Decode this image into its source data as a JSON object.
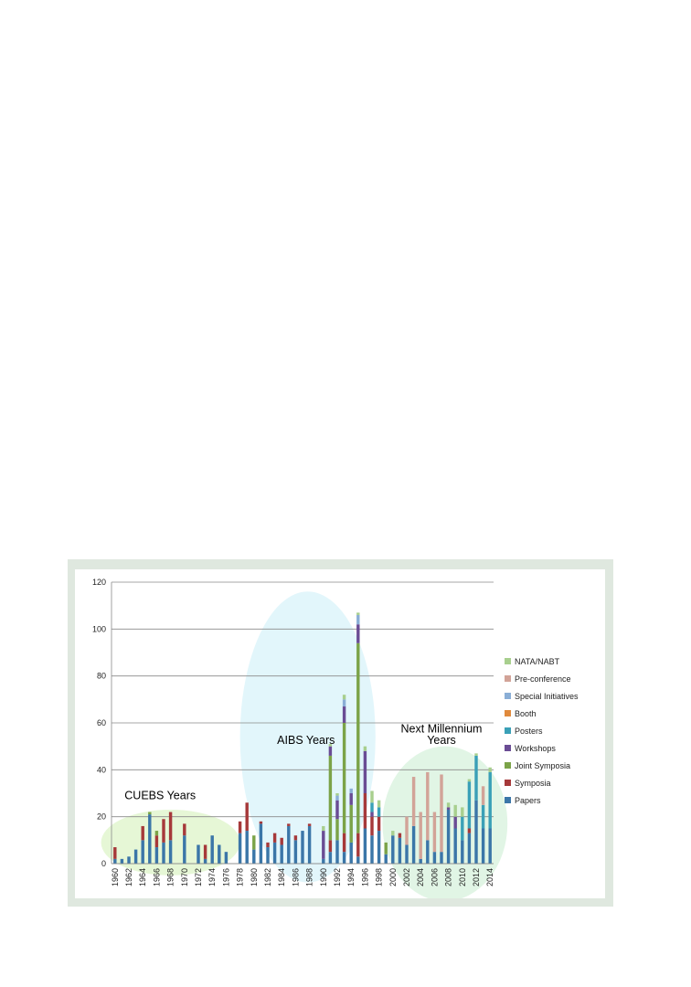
{
  "chart_data": {
    "type": "bar",
    "stacked": true,
    "title": "",
    "xlabel": "",
    "ylabel": "",
    "ylim": [
      0,
      120
    ],
    "yticks": [
      0,
      20,
      40,
      60,
      80,
      100,
      120
    ],
    "grid": "horizontal",
    "legend_position": "right",
    "years": [
      1960,
      1961,
      1962,
      1963,
      1964,
      1965,
      1966,
      1967,
      1968,
      1969,
      1970,
      1971,
      1972,
      1973,
      1974,
      1975,
      1976,
      1977,
      1978,
      1979,
      1980,
      1981,
      1982,
      1983,
      1984,
      1985,
      1986,
      1987,
      1988,
      1989,
      1990,
      1991,
      1992,
      1993,
      1994,
      1995,
      1996,
      1997,
      1998,
      1999,
      2000,
      2001,
      2002,
      2003,
      2004,
      2005,
      2006,
      2007,
      2008,
      2009,
      2010,
      2011,
      2012,
      2013,
      2014
    ],
    "year_tick_labels": [
      "1960",
      "1962",
      "1964",
      "1966",
      "1968",
      "1970",
      "1972",
      "1974",
      "1976",
      "1978",
      "1980",
      "1982",
      "1984",
      "1986",
      "1988",
      "1990",
      "1992",
      "1994",
      "1996",
      "1998",
      "2000",
      "2002",
      "2004",
      "2006",
      "2008",
      "2010",
      "2012",
      "2014"
    ],
    "series": [
      {
        "name": "Papers",
        "color": "#3b76a8",
        "values": [
          2,
          2,
          3,
          6,
          10,
          21,
          7,
          9,
          10,
          0,
          12,
          0,
          8,
          2,
          12,
          8,
          5,
          0,
          13,
          14,
          6,
          17,
          7,
          9,
          8,
          16,
          10,
          14,
          16,
          0,
          2,
          5,
          10,
          5,
          9,
          3,
          15,
          12,
          14,
          4,
          12,
          11,
          8,
          16,
          2,
          10,
          5,
          5,
          23,
          15,
          10,
          13,
          27,
          15,
          15
        ]
      },
      {
        "name": "Symposia",
        "color": "#a6393a",
        "values": [
          5,
          0,
          0,
          0,
          6,
          0,
          5,
          10,
          12,
          0,
          5,
          0,
          0,
          6,
          0,
          0,
          0,
          0,
          5,
          12,
          0,
          1,
          2,
          4,
          3,
          1,
          2,
          0,
          1,
          0,
          0,
          5,
          0,
          8,
          0,
          10,
          15,
          8,
          6,
          0,
          0,
          2,
          0,
          0,
          0,
          0,
          0,
          0,
          0,
          0,
          0,
          2,
          0,
          0,
          0
        ]
      },
      {
        "name": "Joint Symposia",
        "color": "#7ba348",
        "values": [
          0,
          0,
          0,
          0,
          0,
          1,
          2,
          0,
          0,
          0,
          0,
          0,
          0,
          0,
          0,
          0,
          0,
          0,
          0,
          0,
          6,
          0,
          0,
          0,
          0,
          0,
          0,
          0,
          0,
          0,
          0,
          36,
          9,
          47,
          16,
          81,
          0,
          0,
          0,
          5,
          0,
          0,
          0,
          0,
          0,
          0,
          0,
          0,
          0,
          0,
          0,
          0,
          0,
          0,
          0
        ]
      },
      {
        "name": "Workshops",
        "color": "#6a4c94",
        "values": [
          0,
          0,
          0,
          0,
          0,
          0,
          0,
          0,
          0,
          0,
          0,
          0,
          0,
          0,
          0,
          0,
          0,
          0,
          0,
          0,
          0,
          0,
          0,
          0,
          0,
          0,
          0,
          0,
          0,
          0,
          12,
          4,
          8,
          7,
          5,
          8,
          18,
          2,
          0,
          0,
          0,
          0,
          0,
          0,
          0,
          0,
          0,
          0,
          1,
          5,
          0,
          0,
          0,
          0,
          0
        ]
      },
      {
        "name": "Posters",
        "color": "#3aa0b7",
        "values": [
          0,
          0,
          0,
          0,
          0,
          0,
          0,
          0,
          0,
          0,
          0,
          0,
          0,
          0,
          0,
          0,
          0,
          0,
          0,
          0,
          0,
          0,
          0,
          0,
          0,
          0,
          0,
          0,
          0,
          0,
          0,
          0,
          0,
          0,
          0,
          0,
          0,
          4,
          4,
          0,
          0,
          0,
          0,
          0,
          0,
          0,
          0,
          0,
          0,
          0,
          10,
          20,
          19,
          10,
          24
        ]
      },
      {
        "name": "Booth",
        "color": "#e08a3c",
        "values": [
          0,
          0,
          0,
          0,
          0,
          0,
          0,
          0,
          0,
          0,
          0,
          0,
          0,
          0,
          0,
          0,
          0,
          0,
          0,
          0,
          0,
          0,
          0,
          0,
          0,
          0,
          0,
          0,
          0,
          0,
          0,
          0,
          0,
          0,
          0,
          0,
          0,
          0,
          0,
          0,
          0,
          0,
          0,
          0,
          0,
          0,
          0,
          0,
          0,
          0,
          0,
          0,
          0,
          0,
          0
        ]
      },
      {
        "name": "Special Initiatives",
        "color": "#8aaed6",
        "values": [
          0,
          0,
          0,
          0,
          0,
          0,
          0,
          0,
          0,
          0,
          0,
          0,
          0,
          0,
          0,
          0,
          0,
          0,
          0,
          0,
          0,
          0,
          0,
          0,
          0,
          0,
          0,
          0,
          0,
          0,
          0,
          0,
          2,
          3,
          2,
          4,
          0,
          0,
          0,
          0,
          0,
          0,
          0,
          0,
          0,
          0,
          0,
          0,
          0,
          0,
          0,
          0,
          0,
          0,
          0
        ]
      },
      {
        "name": "Pre-conference",
        "color": "#d2a398",
        "values": [
          0,
          0,
          0,
          0,
          0,
          0,
          0,
          0,
          0,
          0,
          0,
          0,
          0,
          0,
          0,
          0,
          0,
          0,
          0,
          0,
          0,
          0,
          0,
          0,
          0,
          0,
          0,
          0,
          0,
          0,
          0,
          0,
          0,
          0,
          0,
          0,
          0,
          0,
          0,
          0,
          0,
          0,
          12,
          21,
          20,
          29,
          17,
          33,
          0,
          0,
          0,
          0,
          0,
          8,
          0
        ]
      },
      {
        "name": "NATA/NABT",
        "color": "#a8cf8e",
        "values": [
          0,
          0,
          0,
          0,
          0,
          0,
          0,
          0,
          0,
          0,
          0,
          0,
          0,
          0,
          0,
          0,
          0,
          0,
          0,
          0,
          0,
          0,
          0,
          0,
          0,
          0,
          0,
          0,
          0,
          0,
          2,
          1,
          1,
          2,
          0,
          1,
          2,
          5,
          3,
          0,
          2,
          0,
          0,
          0,
          0,
          0,
          0,
          0,
          2,
          5,
          4,
          1,
          1,
          0,
          2
        ]
      }
    ],
    "era_regions": [
      {
        "label": "CUEBS Years",
        "x_from": 1958,
        "x_to": 1978,
        "y_center": 9,
        "y_radius": 14,
        "color": "#e3f6d2"
      },
      {
        "label": "AIBS Years",
        "x_from": 1978,
        "x_to": 1997.5,
        "y_center": 54,
        "y_radius": 62,
        "color": "#dff5fb"
      },
      {
        "label": "Next Millennium Years",
        "x_from": 1998.5,
        "x_to": 2016.5,
        "y_center": 17,
        "y_radius": 33,
        "color": "#def4e2"
      }
    ],
    "annotations": [
      {
        "text": "CUEBS Years",
        "x": 1966.5,
        "y": 27.5
      },
      {
        "text": "AIBS Years",
        "x": 1987.5,
        "y": 51
      },
      {
        "text": "Next Millennium",
        "x": 2007,
        "y": 56
      },
      {
        "text": "Years",
        "x": 2007,
        "y": 51
      }
    ]
  }
}
